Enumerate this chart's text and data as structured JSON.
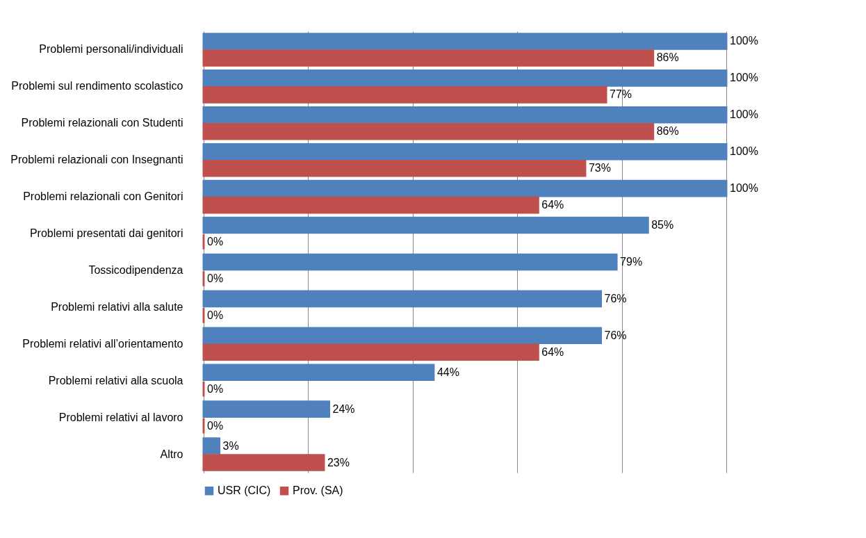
{
  "chart_data": {
    "type": "bar",
    "orientation": "horizontal",
    "categories": [
      "Problemi personali/individuali",
      "Problemi sul rendimento scolastico",
      "Problemi relazionali con Studenti",
      "Problemi relazionali con  Insegnanti",
      "Problemi relazionali con Genitori",
      "Problemi presentati dai genitori",
      "Tossicodipendenza",
      "Problemi relativi alla salute",
      "Problemi relativi all’orientamento",
      "Problemi relativi alla scuola",
      "Problemi relativi al lavoro",
      "Altro"
    ],
    "series": [
      {
        "name": "USR (CIC)",
        "color": "#4f81bd",
        "values": [
          100,
          100,
          100,
          100,
          100,
          85,
          79,
          76,
          76,
          44,
          24,
          3
        ],
        "value_labels": [
          "100%",
          "100%",
          "100%",
          "100%",
          "100%",
          "85%",
          "79%",
          "76%",
          "76%",
          "44%",
          "24%",
          "3%"
        ]
      },
      {
        "name": "Prov. (SA)",
        "color": "#c0504d",
        "values": [
          86,
          77,
          86,
          73,
          64,
          0,
          0,
          0,
          64,
          0,
          0,
          23
        ],
        "value_labels": [
          "86%",
          "77%",
          "86%",
          "73%",
          "64%",
          "0%",
          "0%",
          "0%",
          "64%",
          "0%",
          "0%",
          "23%"
        ]
      }
    ],
    "xlim": [
      0,
      100
    ],
    "xticks": [
      {
        "value": 0,
        "label": null
      },
      {
        "value": 20,
        "label": null
      },
      {
        "value": 40,
        "label": null
      },
      {
        "value": 60,
        "label": null
      },
      {
        "value": 80,
        "label": null
      },
      {
        "value": 100,
        "label": null
      }
    ],
    "tick_labels": "y",
    "grid": "x",
    "legend": "bottom"
  }
}
